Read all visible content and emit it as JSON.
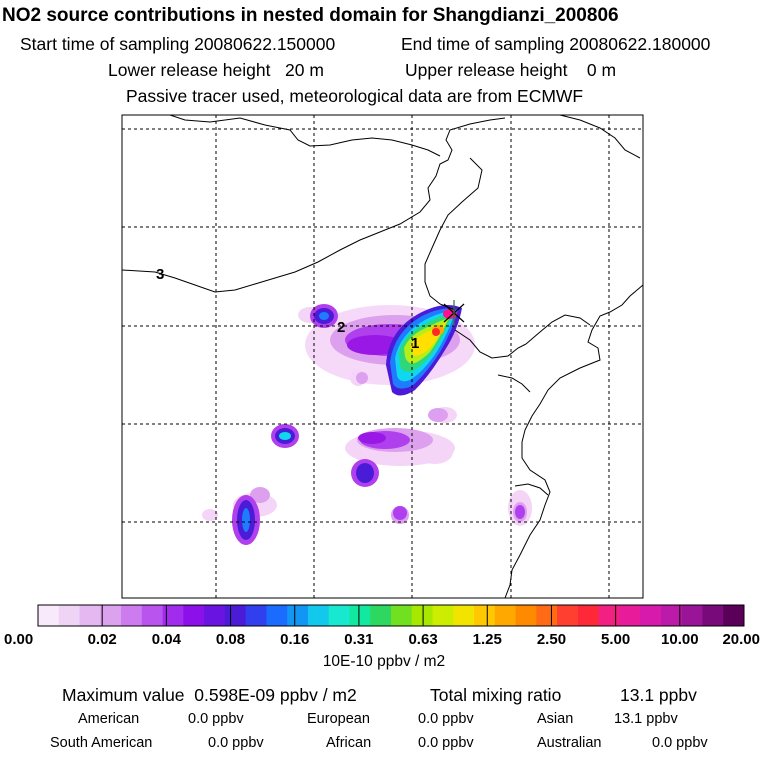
{
  "title": "NO2 source contributions in nested domain for Shangdianzi_200806",
  "header": {
    "start_label": "Start time of sampling 20080622.150000",
    "end_label": "End time of sampling 20080622.180000",
    "lower_label": "Lower release height   20 m",
    "upper_label": "Upper release height    0 m",
    "tracer_note": "Passive tracer used, meteorological data are from ECMWF"
  },
  "map": {
    "region_labels": [
      "1",
      "2",
      "3"
    ],
    "plume_colors": {
      "light": "#f5d5f7",
      "pink": "#dda0ee",
      "violet": "#b040ee",
      "purple": "#9a18e6",
      "blue": "#4a1cd8",
      "azure": "#1e7cff",
      "cyan": "#10d6ee",
      "green": "#2ed87a",
      "lime": "#b8ee18",
      "yellow": "#ffe000",
      "orange": "#ffaa00",
      "red": "#ff2a28",
      "magenta": "#ff1090"
    }
  },
  "colorbar": {
    "colors": [
      "#f8eafa",
      "#f0d4f6",
      "#e6b8f2",
      "#dca2ee",
      "#cc7cee",
      "#b955ee",
      "#a22cee",
      "#8c10ea",
      "#6a14e2",
      "#4a1cd8",
      "#3040ee",
      "#1a6cff",
      "#1296f4",
      "#12c8ec",
      "#18e8d0",
      "#12e8a0",
      "#2ed860",
      "#70e020",
      "#a8e800",
      "#ccec00",
      "#f2e400",
      "#ffc800",
      "#ffa800",
      "#ff8a00",
      "#ff6a14",
      "#ff4030",
      "#ff2838",
      "#f22080",
      "#e81c9a",
      "#d81aac",
      "#bc1aa8",
      "#9a1498",
      "#780a7a",
      "#5a0058"
    ],
    "tick_labels": [
      "0.00",
      "0.02",
      "0.04",
      "0.08",
      "0.16",
      "0.31",
      "0.63",
      "1.25",
      "2.50",
      "5.00",
      "10.00",
      "20.00"
    ],
    "unit_label": "10E-10 ppbv / m2"
  },
  "footer": {
    "max_label": "Maximum value  0.598E-09 ppbv / m2",
    "total_label": "Total mixing ratio",
    "total_value": "13.1 ppbv",
    "regions": [
      {
        "name": "American",
        "value": "0.0 ppbv"
      },
      {
        "name": "European",
        "value": "0.0 ppbv"
      },
      {
        "name": "Asian",
        "value": "13.1 ppbv"
      },
      {
        "name": "South American",
        "value": "0.0 ppbv"
      },
      {
        "name": "African",
        "value": "0.0 ppbv"
      },
      {
        "name": "Australian",
        "value": "0.0 ppbv"
      }
    ]
  }
}
